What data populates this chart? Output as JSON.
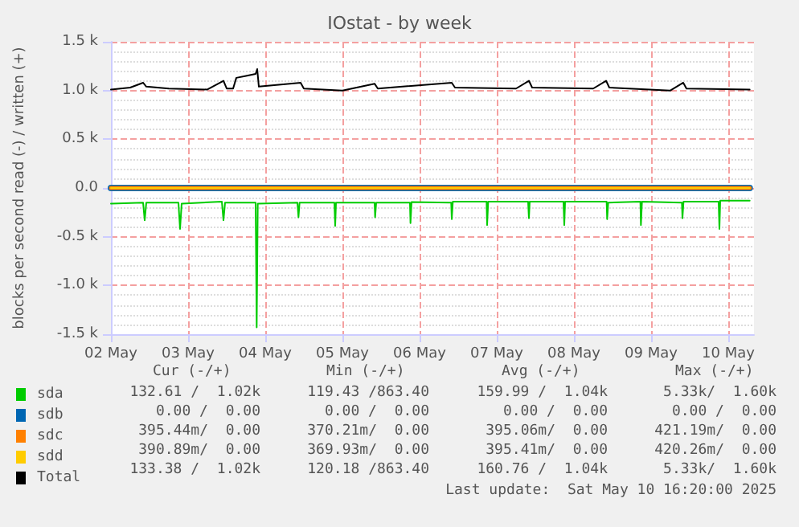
{
  "chart_data": {
    "type": "line",
    "title": "IOstat - by week",
    "ylabel": "blocks per second read (-) / written (+)",
    "xlim": [
      "2025-05-02T00:00",
      "2025-05-10T08:00"
    ],
    "xticks": [
      {
        "value": "2025-05-02",
        "label": "02 May"
      },
      {
        "value": "2025-05-03",
        "label": "03 May"
      },
      {
        "value": "2025-05-04",
        "label": "04 May"
      },
      {
        "value": "2025-05-05",
        "label": "05 May"
      },
      {
        "value": "2025-05-06",
        "label": "06 May"
      },
      {
        "value": "2025-05-07",
        "label": "07 May"
      },
      {
        "value": "2025-05-08",
        "label": "08 May"
      },
      {
        "value": "2025-05-09",
        "label": "09 May"
      },
      {
        "value": "2025-05-10",
        "label": "10 May"
      }
    ],
    "ylim": [
      -1500,
      1500
    ],
    "yticks": [
      {
        "value": -1500,
        "label": "-1.5 k"
      },
      {
        "value": -1000,
        "label": "-1.0 k"
      },
      {
        "value": -500,
        "label": "-0.5 k"
      },
      {
        "value": 0,
        "label": "0.0"
      },
      {
        "value": 500,
        "label": "0.5 k"
      },
      {
        "value": 1000,
        "label": "1.0 k"
      },
      {
        "value": 1500,
        "label": "1.5 k"
      }
    ],
    "grid": true,
    "legend": "bottom left",
    "marker": "none",
    "line_style": "solid",
    "series": [
      {
        "name": "sda",
        "color": "#00cc00",
        "x": [
          "2025-05-02T00:00",
          "2025-05-02T10:00",
          "2025-05-02T10:30",
          "2025-05-02T11:00",
          "2025-05-02T21:00",
          "2025-05-02T21:30",
          "2025-05-02T22:00",
          "2025-05-03T10:30",
          "2025-05-03T11:00",
          "2025-05-03T11:30",
          "2025-05-03T21:00",
          "2025-05-03T21:20",
          "2025-05-03T21:40",
          "2025-05-04T10:00",
          "2025-05-04T10:20",
          "2025-05-04T10:40",
          "2025-05-04T21:30",
          "2025-05-04T21:45",
          "2025-05-04T22:00",
          "2025-05-05T10:00",
          "2025-05-05T10:10",
          "2025-05-05T10:30",
          "2025-05-05T21:00",
          "2025-05-05T21:10",
          "2025-05-05T21:30",
          "2025-05-06T09:50",
          "2025-05-06T10:00",
          "2025-05-06T10:20",
          "2025-05-06T20:50",
          "2025-05-06T21:00",
          "2025-05-06T21:20",
          "2025-05-07T09:45",
          "2025-05-07T10:00",
          "2025-05-07T10:15",
          "2025-05-07T20:45",
          "2025-05-07T21:00",
          "2025-05-07T21:15",
          "2025-05-08T10:10",
          "2025-05-08T10:20",
          "2025-05-08T10:40",
          "2025-05-08T20:40",
          "2025-05-08T20:50",
          "2025-05-08T21:10",
          "2025-05-09T09:35",
          "2025-05-09T09:45",
          "2025-05-09T10:05",
          "2025-05-09T21:00",
          "2025-05-09T21:15",
          "2025-05-09T21:30",
          "2025-05-10T06:40"
        ],
        "values": [
          -160,
          -150,
          -330,
          -150,
          -150,
          -420,
          -160,
          -140,
          -330,
          -150,
          -150,
          -1430,
          -160,
          -150,
          -300,
          -150,
          -150,
          -390,
          -150,
          -150,
          -300,
          -150,
          -150,
          -360,
          -145,
          -150,
          -320,
          -140,
          -140,
          -380,
          -140,
          -140,
          -310,
          -140,
          -140,
          -380,
          -140,
          -140,
          -320,
          -150,
          -140,
          -380,
          -140,
          -150,
          -310,
          -140,
          -140,
          -420,
          -130,
          -130
        ]
      },
      {
        "name": "sdb",
        "color": "#0066b3",
        "x": [
          "2025-05-02T00:00",
          "2025-05-10T06:40"
        ],
        "values": [
          0,
          0
        ]
      },
      {
        "name": "sdc",
        "color": "#ff8000",
        "x": [
          "2025-05-02T00:00",
          "2025-05-10T06:40"
        ],
        "values": [
          0,
          0
        ]
      },
      {
        "name": "sdd",
        "color": "#ffcc00",
        "x": [
          "2025-05-02T00:00",
          "2025-05-10T06:40"
        ],
        "values": [
          0,
          0
        ]
      },
      {
        "name": "Total",
        "color": "#000000",
        "x": [
          "2025-05-02T00:00",
          "2025-05-02T06:00",
          "2025-05-02T10:00",
          "2025-05-02T11:00",
          "2025-05-02T18:00",
          "2025-05-03T06:00",
          "2025-05-03T11:00",
          "2025-05-03T12:00",
          "2025-05-03T14:00",
          "2025-05-03T15:00",
          "2025-05-03T18:00",
          "2025-05-03T21:00",
          "2025-05-03T21:30",
          "2025-05-03T22:00",
          "2025-05-04T11:00",
          "2025-05-04T12:00",
          "2025-05-05T00:00",
          "2025-05-05T10:00",
          "2025-05-05T11:00",
          "2025-05-06T10:00",
          "2025-05-06T11:00",
          "2025-05-07T06:00",
          "2025-05-07T10:00",
          "2025-05-07T11:00",
          "2025-05-08T06:00",
          "2025-05-08T10:00",
          "2025-05-08T11:00",
          "2025-05-09T06:00",
          "2025-05-09T10:00",
          "2025-05-09T11:00",
          "2025-05-10T06:40"
        ],
        "values": [
          1010,
          1030,
          1080,
          1040,
          1020,
          1010,
          1100,
          1020,
          1020,
          1130,
          1150,
          1170,
          1220,
          1040,
          1080,
          1020,
          1000,
          1070,
          1020,
          1080,
          1030,
          1020,
          1100,
          1030,
          1020,
          1100,
          1030,
          1000,
          1080,
          1020,
          1010
        ]
      }
    ],
    "annotations": [
      "Cur (-/+)",
      "Min (-/+)",
      "Avg (-/+)",
      "Max (-/+)",
      "132.61 /  1.02k",
      "119.43 /863.40",
      "159.99 /  1.04k",
      "5.33k/  1.60k",
      "0.00 /  0.00",
      "0.00 /  0.00",
      "0.00 /  0.00",
      "0.00 /  0.00",
      "395.44m/  0.00",
      "370.21m/  0.00",
      "395.06m/  0.00",
      "421.19m/  0.00",
      "390.89m/  0.00",
      "369.93m/  0.00",
      "395.41m/  0.00",
      "420.26m/  0.00",
      "133.38 /  1.02k",
      "120.18 /863.40",
      "160.76 /  1.04k",
      "5.33k/  1.60k",
      "Last update:  Sat May 10 16:20:00 2025"
    ]
  }
}
